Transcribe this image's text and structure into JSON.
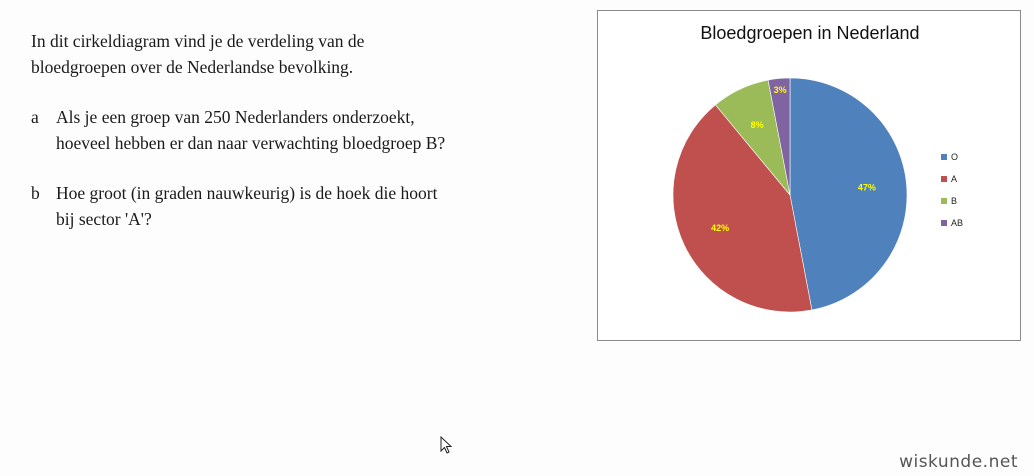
{
  "question": {
    "intro": "In dit cirkeldiagram vind je de verdeling van de\nbloedgroepen over de Nederlandse bevolking.",
    "items": [
      {
        "letter": "a",
        "text": "Als je een groep van 250 Nederlanders onderzoekt,\nhoeveel hebben er dan naar verwachting bloedgroep B?"
      },
      {
        "letter": "b",
        "text": "Hoe groot (in graden nauwkeurig) is de hoek die hoort\nbij sector 'A'?"
      }
    ]
  },
  "chart_data": {
    "type": "pie",
    "title": "Bloedgroepen in Nederland",
    "categories": [
      "O",
      "A",
      "B",
      "AB"
    ],
    "values": [
      47,
      42,
      8,
      3
    ],
    "data_labels": [
      "47%",
      "42%",
      "8%",
      "3%"
    ],
    "colors": [
      "#4f81bd",
      "#c0504d",
      "#9bbb59",
      "#8064a2"
    ],
    "label_color": "#ffff00",
    "legend_position": "right",
    "start_angle": "top",
    "direction": "clockwise"
  },
  "watermark": "wiskunde.net",
  "icons": {
    "cursor": "mouse-pointer-icon"
  }
}
